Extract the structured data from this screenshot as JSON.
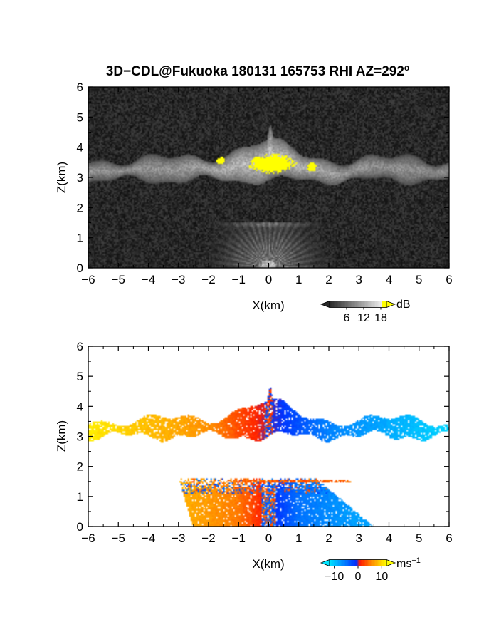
{
  "title": "3D−CDL@Fukuoka 180131 165753 RHI AZ=292",
  "title_degree": "o",
  "colors": {
    "background": "#000000",
    "echo_bright": "#ffffff",
    "echo_saturated": "#ffff00",
    "vel_cyan": "#00e5ff",
    "vel_blue": "#0030ff",
    "vel_red": "#ff1e00",
    "vel_orange": "#ff9000",
    "vel_yellow": "#ffff00"
  },
  "chart_data": [
    {
      "type": "heatmap",
      "name": "backscatter",
      "xlabel": "X(km)",
      "ylabel": "Z(km)",
      "xlim": [
        -6,
        6
      ],
      "ylim": [
        0,
        6
      ],
      "xticks": [
        -6,
        -5,
        -4,
        -3,
        -2,
        -1,
        0,
        1,
        2,
        3,
        4,
        5,
        6
      ],
      "yticks": [
        0,
        1,
        2,
        3,
        4,
        5,
        6
      ],
      "colorbar": {
        "ticks": [
          6,
          12,
          18
        ],
        "unit": "dB",
        "range": [
          0,
          20
        ],
        "colormap": "gray-to-yellow"
      },
      "features": {
        "cloud_layer": {
          "x_range": [
            -6,
            6
          ],
          "z_base": 2.9,
          "z_top": 3.6
        },
        "convective_top": {
          "x_range": [
            -2,
            1.6
          ],
          "z_max": 4.3
        },
        "saturated_core": {
          "x_range": [
            -1.8,
            1.7
          ],
          "z_range": [
            3.0,
            4.0
          ]
        },
        "near_field_fan": {
          "x_range": [
            -3,
            3
          ],
          "z_range": [
            0,
            1.5
          ]
        }
      }
    },
    {
      "type": "heatmap",
      "name": "doppler_velocity",
      "xlabel": "X(km)",
      "ylabel": "Z(km)",
      "xlim": [
        -6,
        6
      ],
      "ylim": [
        0,
        6
      ],
      "xticks": [
        -6,
        -5,
        -4,
        -3,
        -2,
        -1,
        0,
        1,
        2,
        3,
        4,
        5,
        6
      ],
      "yticks": [
        0,
        1,
        2,
        3,
        4,
        5,
        6
      ],
      "colorbar": {
        "ticks": [
          -10,
          0,
          10
        ],
        "unit": "ms",
        "unit_exponent": "−1",
        "range": [
          -12,
          12
        ],
        "colormap": "cyan-blue-red-yellow"
      },
      "features": {
        "upper_layer": {
          "x_range": [
            -6,
            6
          ],
          "z_range": [
            2.9,
            4.3
          ],
          "v_at_x_-6": 11,
          "v_at_x_-2": 6,
          "v_at_x_0": 0,
          "v_at_x_2": -6,
          "v_at_x_6": -11
        },
        "lower_layer": {
          "x_range": [
            -3,
            3.5
          ],
          "z_range": [
            0,
            1.6
          ],
          "v_at_x_-3": 8,
          "v_at_x_-1": 5,
          "v_at_x_0": 0,
          "v_at_x_1": -5,
          "v_at_x_3": -8
        }
      }
    }
  ]
}
